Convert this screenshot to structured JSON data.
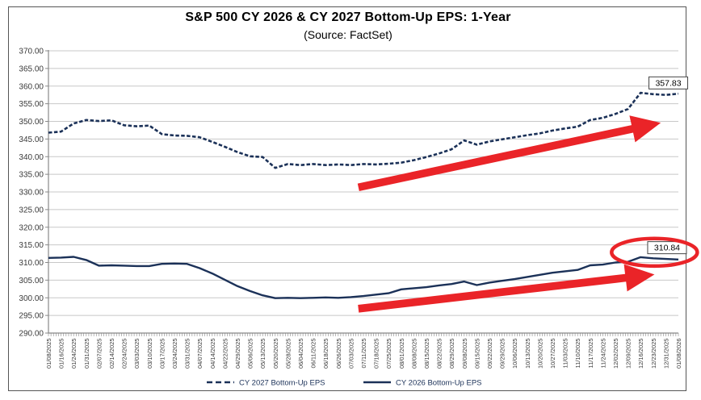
{
  "title": "S&P 500 CY 2026 & CY 2027 Bottom-Up EPS: 1-Year",
  "subtitle": "(Source: FactSet)",
  "colors": {
    "line_navy": "#1B3158",
    "annotation_red": "#EA2428",
    "gridline": "#C8C8C8",
    "axis": "#888888",
    "border": "#555555",
    "tick_text": "#3A3A3A",
    "label_box_border": "#444444",
    "label_text": "#000000"
  },
  "chart_data": {
    "type": "line",
    "title": "S&P 500 CY 2026 & CY 2027 Bottom-Up EPS: 1-Year",
    "subtitle": "(Source: FactSet)",
    "ylim": [
      290,
      370
    ],
    "y_tick_step": 5,
    "y_tick_decimals": 2,
    "grid": "horizontal",
    "legend_position": "bottom",
    "x_labels": [
      "01/08/2025",
      "01/16/2025",
      "01/24/2025",
      "01/31/2025",
      "02/07/2025",
      "02/14/2025",
      "02/24/2025",
      "03/03/2025",
      "03/10/2025",
      "03/17/2025",
      "03/24/2025",
      "03/31/2025",
      "04/07/2025",
      "04/14/2025",
      "04/22/2025",
      "04/29/2025",
      "05/06/2025",
      "05/13/2025",
      "05/20/2025",
      "05/28/2025",
      "06/04/2025",
      "06/11/2025",
      "06/18/2025",
      "06/26/2025",
      "07/03/2025",
      "07/11/2025",
      "07/18/2025",
      "07/25/2025",
      "08/01/2025",
      "08/08/2025",
      "08/15/2025",
      "08/22/2025",
      "08/29/2025",
      "09/08/2025",
      "09/15/2025",
      "09/22/2025",
      "09/29/2025",
      "10/06/2025",
      "10/13/2025",
      "10/20/2025",
      "10/27/2025",
      "11/03/2025",
      "11/10/2025",
      "11/17/2025",
      "11/24/2025",
      "12/02/2025",
      "12/09/2025",
      "12/16/2025",
      "12/23/2025",
      "12/31/2025",
      "01/08/2026"
    ],
    "series": [
      {
        "name": "CY 2027 Bottom-Up EPS",
        "line_style": "dashed",
        "values": [
          346.8,
          347.1,
          349.4,
          350.4,
          350.1,
          350.3,
          348.9,
          348.6,
          348.8,
          346.4,
          346.0,
          345.9,
          345.5,
          344.2,
          342.8,
          341.3,
          340.1,
          339.9,
          336.8,
          337.9,
          337.6,
          337.9,
          337.6,
          337.8,
          337.6,
          337.9,
          337.8,
          338.0,
          338.3,
          339.0,
          339.9,
          340.9,
          342.1,
          344.6,
          343.4,
          344.3,
          344.9,
          345.5,
          346.1,
          346.6,
          347.4,
          348.0,
          348.5,
          350.4,
          351.0,
          352.1,
          353.5,
          358.1,
          357.7,
          357.5,
          357.83
        ]
      },
      {
        "name": "CY 2026 Bottom-Up EPS",
        "line_style": "solid",
        "values": [
          311.3,
          311.4,
          311.6,
          310.7,
          309.1,
          309.2,
          309.1,
          309.0,
          309.0,
          309.6,
          309.7,
          309.6,
          308.4,
          306.9,
          305.1,
          303.3,
          301.9,
          300.7,
          299.9,
          300.0,
          299.9,
          300.0,
          300.1,
          300.0,
          300.2,
          300.5,
          300.9,
          301.3,
          302.4,
          302.7,
          303.0,
          303.5,
          303.9,
          304.6,
          303.6,
          304.3,
          304.8,
          305.3,
          305.9,
          306.5,
          307.1,
          307.5,
          307.9,
          309.2,
          309.4,
          310.0,
          310.2,
          311.5,
          311.2,
          311.0,
          310.84
        ]
      }
    ],
    "end_labels": [
      {
        "text": "357.83",
        "series": "CY 2027 Bottom-Up EPS",
        "x_index": 49.2,
        "y_value": 360.9
      },
      {
        "text": "310.84",
        "series": "CY 2026 Bottom-Up EPS",
        "x_index": 49.1,
        "y_value": 314.2
      }
    ],
    "annotations": {
      "arrows": [
        {
          "from": {
            "x_index": 24.6,
            "y_value": 331.3
          },
          "to": {
            "x_index": 48.6,
            "y_value": 349.6
          }
        },
        {
          "from": {
            "x_index": 24.6,
            "y_value": 296.9
          },
          "to": {
            "x_index": 48.1,
            "y_value": 306.6
          }
        }
      ],
      "ellipse": {
        "x_index": 48.1,
        "y_value": 312.9,
        "rx_weeks": 3.4,
        "ry_units": 3.9
      }
    }
  }
}
